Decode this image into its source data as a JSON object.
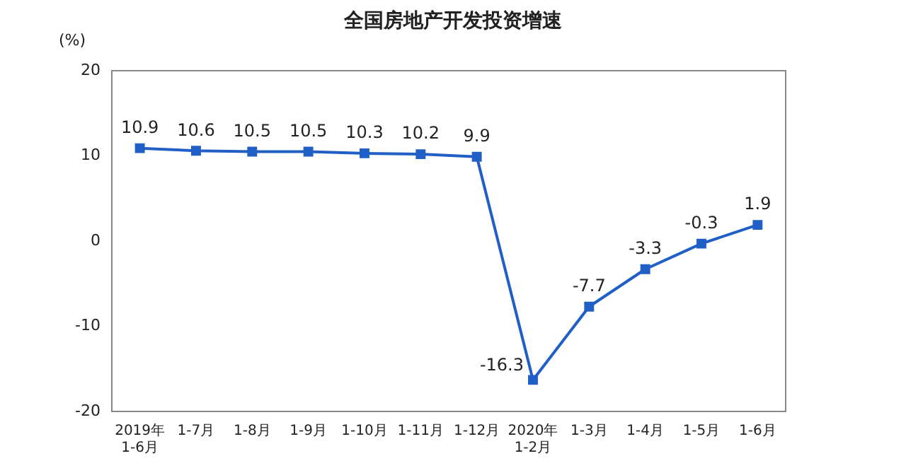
{
  "chart_data": {
    "type": "line",
    "title": "全国房地产开发投资增速",
    "ylabel": "(%)",
    "categories": [
      "2019年\n1-6月",
      "1-7月",
      "1-8月",
      "1-9月",
      "1-10月",
      "1-11月",
      "1-12月",
      "2020年\n1-2月",
      "1-3月",
      "1-4月",
      "1-5月",
      "1-6月"
    ],
    "series": [
      {
        "color": "#1f5fc6",
        "values": [
          10.9,
          10.6,
          10.5,
          10.5,
          10.3,
          10.2,
          9.9,
          -16.3,
          -7.7,
          -3.3,
          -0.3,
          1.9
        ]
      }
    ],
    "ylim": [
      -20,
      20
    ],
    "yticks": [
      -20,
      -10,
      0,
      10,
      20
    ],
    "grid": false,
    "legend": false,
    "marker": "square",
    "line_style": "solid",
    "data_labels": true
  }
}
